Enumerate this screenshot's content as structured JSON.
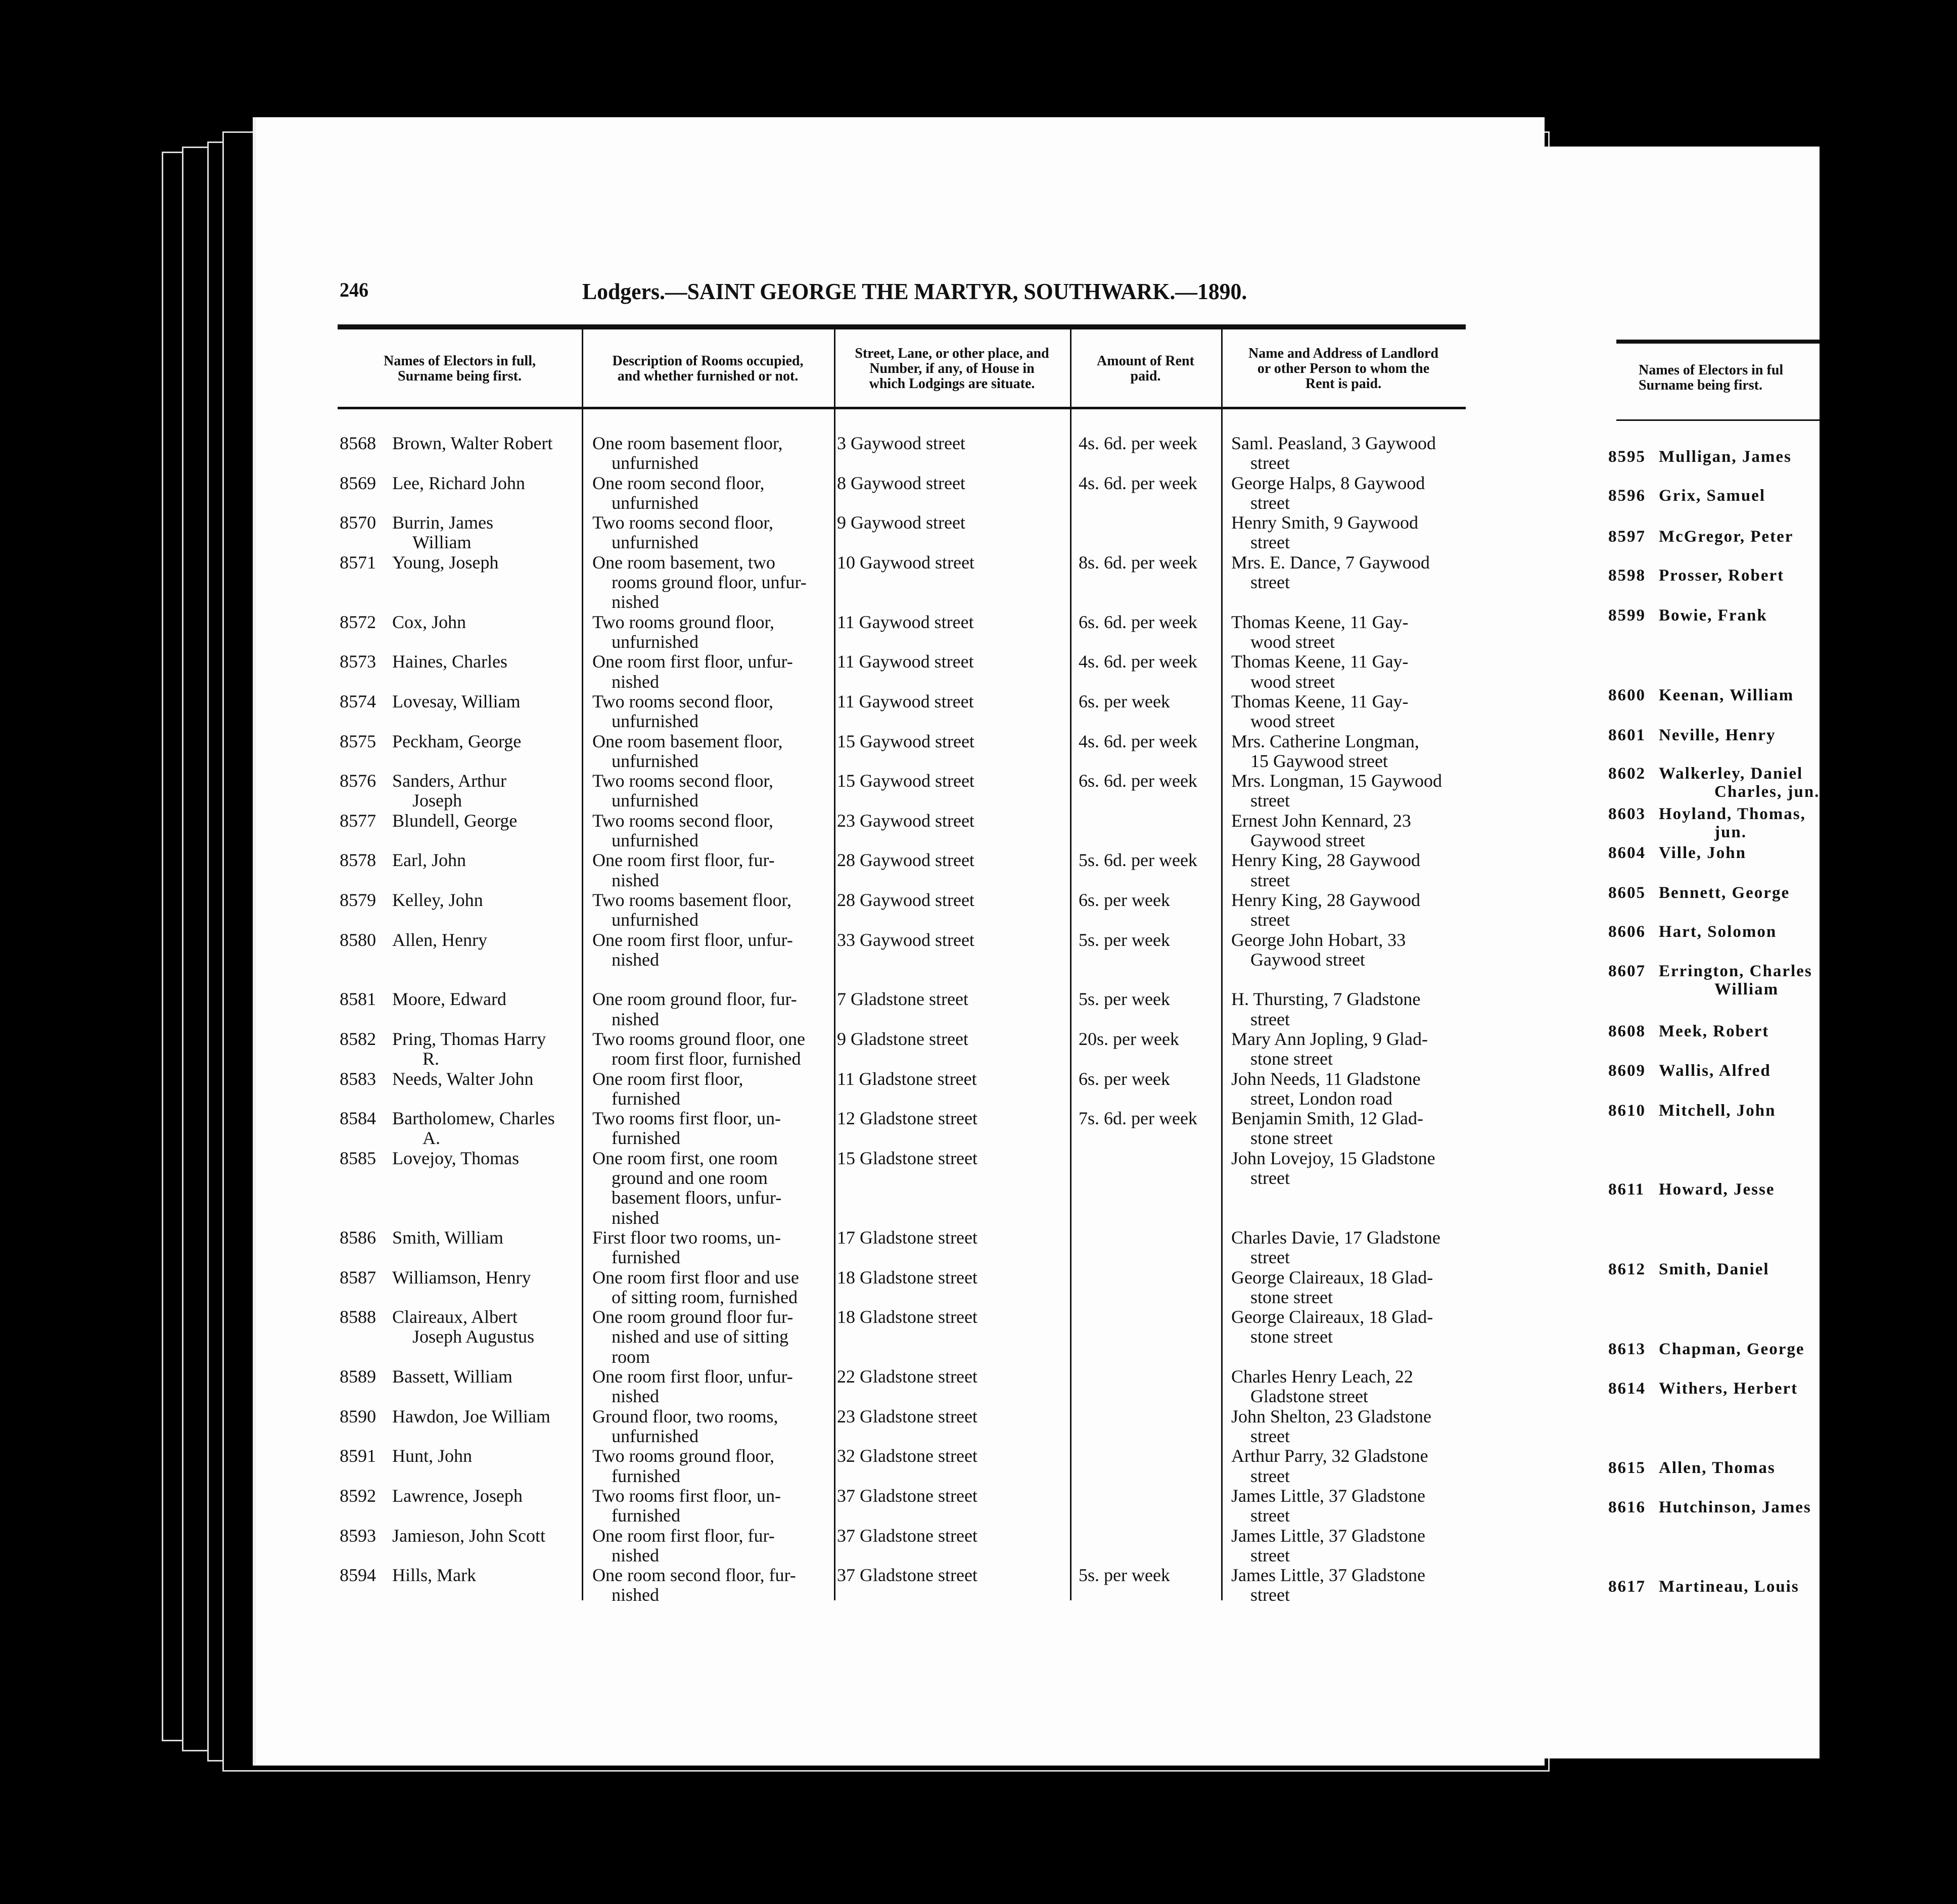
{
  "page_number": "246",
  "title": "Lodgers.—SAINT GEORGE THE MARTYR, SOUTHWARK.—1890.",
  "columns": [
    "Names of Electors in full,\nSurname being first.",
    "Description of Rooms occupied,\nand whether furnished or not.",
    "Street, Lane, or other place, and\nNumber, if any, of House in\nwhich Lodgings are situate.",
    "Amount of Rent\npaid.",
    "Name and Address of Landlord\nor other Person to whom the\nRent is paid."
  ],
  "rows": [
    {
      "no": "8568",
      "name": "Brown, Walter Robert",
      "rooms": "One room basement floor,\nunfurnished",
      "street": "3 Gaywood street",
      "rent": "4s. 6d. per week",
      "landlord": "Saml. Peasland, 3 Gaywood\nstreet"
    },
    {
      "no": "8569",
      "name": "Lee, Richard John",
      "rooms": "One room second floor,\nunfurnished",
      "street": "8 Gaywood street",
      "rent": "4s. 6d. per week",
      "landlord": "George Halps, 8 Gaywood\nstreet"
    },
    {
      "no": "8570",
      "name": "Burrin, James\nWilliam",
      "rooms": "Two rooms second floor,\nunfurnished",
      "street": "9 Gaywood street",
      "rent": "",
      "landlord": "Henry Smith, 9 Gaywood\nstreet"
    },
    {
      "no": "8571",
      "name": "Young, Joseph",
      "rooms": "One room basement, two\nrooms ground floor, unfur-\nnished",
      "street": "10 Gaywood street",
      "rent": "8s. 6d. per week",
      "landlord": "Mrs. E. Dance, 7 Gaywood\nstreet"
    },
    {
      "no": "8572",
      "name": "Cox, John",
      "rooms": "Two rooms ground floor,\nunfurnished",
      "street": "11 Gaywood street",
      "rent": "6s. 6d. per week",
      "landlord": "Thomas Keene, 11 Gay-\nwood street"
    },
    {
      "no": "8573",
      "name": "Haines, Charles",
      "rooms": "One room first floor, unfur-\nnished",
      "street": "11 Gaywood street",
      "rent": "4s. 6d. per week",
      "landlord": "Thomas Keene, 11 Gay-\nwood street"
    },
    {
      "no": "8574",
      "name": "Lovesay, William",
      "rooms": "Two rooms second floor,\nunfurnished",
      "street": "11 Gaywood street",
      "rent": "6s. per week",
      "landlord": "Thomas Keene, 11 Gay-\nwood street"
    },
    {
      "no": "8575",
      "name": "Peckham, George",
      "rooms": "One room basement floor,\nunfurnished",
      "street": "15 Gaywood street",
      "rent": "4s. 6d. per week",
      "landlord": "Mrs. Catherine Longman,\n15 Gaywood street"
    },
    {
      "no": "8576",
      "name": "Sanders, Arthur\nJoseph",
      "rooms": "Two rooms second floor,\nunfurnished",
      "street": "15 Gaywood street",
      "rent": "6s. 6d. per week",
      "landlord": "Mrs. Longman, 15 Gaywood\nstreet"
    },
    {
      "no": "8577",
      "name": "Blundell, George",
      "rooms": "Two rooms second floor,\nunfurnished",
      "street": "23 Gaywood street",
      "rent": "",
      "landlord": "Ernest John Kennard, 23\nGaywood street"
    },
    {
      "no": "8578",
      "name": "Earl, John",
      "rooms": "One room first floor, fur-\nnished",
      "street": "28 Gaywood street",
      "rent": "5s. 6d. per week",
      "landlord": "Henry King, 28 Gaywood\nstreet"
    },
    {
      "no": "8579",
      "name": "Kelley, John",
      "rooms": "Two rooms basement floor,\nunfurnished",
      "street": "28 Gaywood street",
      "rent": "6s. per week",
      "landlord": "Henry King, 28 Gaywood\nstreet"
    },
    {
      "no": "8580",
      "name": "Allen, Henry",
      "rooms": "One room first floor, unfur-\nnished",
      "street": "33 Gaywood street",
      "rent": "5s. per week",
      "landlord": "George John Hobart, 33\nGaywood street"
    },
    {
      "no": "8581",
      "name": "Moore, Edward",
      "rooms": "One room ground floor, fur-\nnished",
      "street": "7 Gladstone street",
      "rent": "5s. per week",
      "landlord": "H. Thursting, 7 Gladstone\nstreet"
    },
    {
      "no": "8582",
      "name": "Pring, Thomas Harry\nR.",
      "rooms": "Two rooms ground floor, one\nroom first floor, furnished",
      "street": "9 Gladstone street",
      "rent": "20s. per week",
      "landlord": "Mary Ann Jopling, 9 Glad-\nstone street"
    },
    {
      "no": "8583",
      "name": "Needs, Walter John",
      "rooms": "One room first floor,\nfurnished",
      "street": "11 Gladstone street",
      "rent": "6s. per week",
      "landlord": "John Needs, 11 Gladstone\nstreet, London road"
    },
    {
      "no": "8584",
      "name": "Bartholomew, Charles\nA.",
      "rooms": "Two rooms first floor, un-\nfurnished",
      "street": "12 Gladstone street",
      "rent": "7s. 6d. per week",
      "landlord": "Benjamin Smith, 12 Glad-\nstone street"
    },
    {
      "no": "8585",
      "name": "Lovejoy, Thomas",
      "rooms": "One room first, one room\nground and one room\nbasement floors, unfur-\nnished",
      "street": "15 Gladstone street",
      "rent": "",
      "landlord": "John Lovejoy, 15 Gladstone\nstreet"
    },
    {
      "no": "8586",
      "name": "Smith, William",
      "rooms": "First floor two rooms, un-\nfurnished",
      "street": "17 Gladstone street",
      "rent": "",
      "landlord": "Charles Davie, 17 Gladstone\nstreet"
    },
    {
      "no": "8587",
      "name": "Williamson, Henry",
      "rooms": "One room first floor and use\nof sitting room, furnished",
      "street": "18 Gladstone street",
      "rent": "",
      "landlord": "George Claireaux, 18 Glad-\nstone street"
    },
    {
      "no": "8588",
      "name": "Claireaux, Albert\nJoseph Augustus",
      "rooms": "One room ground floor fur-\nnished and use of sitting\nroom",
      "street": "18 Gladstone street",
      "rent": "",
      "landlord": "George Claireaux, 18 Glad-\nstone street"
    },
    {
      "no": "8589",
      "name": "Bassett, William",
      "rooms": "One room first floor, unfur-\nnished",
      "street": "22 Gladstone street",
      "rent": "",
      "landlord": "Charles Henry Leach, 22\nGladstone street"
    },
    {
      "no": "8590",
      "name": "Hawdon, Joe William",
      "rooms": "Ground floor, two rooms,\nunfurnished",
      "street": "23 Gladstone street",
      "rent": "",
      "landlord": "John Shelton, 23 Gladstone\nstreet"
    },
    {
      "no": "8591",
      "name": "Hunt, John",
      "rooms": "Two rooms ground floor,\nfurnished",
      "street": "32 Gladstone street",
      "rent": "",
      "landlord": "Arthur Parry, 32 Gladstone\nstreet"
    },
    {
      "no": "8592",
      "name": "Lawrence, Joseph",
      "rooms": "Two rooms first floor, un-\nfurnished",
      "street": "37 Gladstone street",
      "rent": "",
      "landlord": "James Little, 37 Gladstone\nstreet"
    },
    {
      "no": "8593",
      "name": "Jamieson, John Scott",
      "rooms": "One room first floor, fur-\nnished",
      "street": "37 Gladstone street",
      "rent": "",
      "landlord": "James Little, 37 Gladstone\nstreet"
    },
    {
      "no": "8594",
      "name": "Hills, Mark",
      "rooms": "One room second floor, fur-\nnished",
      "street": "37 Gladstone street",
      "rent": "5s. per week",
      "landlord": "James Little, 37 Gladstone\nstreet"
    }
  ],
  "right_page": {
    "header": "Names of Electors in ful\nSurname being first.",
    "rows": [
      {
        "no": "8595",
        "name": "Mulligan, James"
      },
      {
        "no": "8596",
        "name": "Grix, Samuel"
      },
      {
        "no": "8597",
        "name": "McGregor, Peter"
      },
      {
        "no": "8598",
        "name": "Prosser, Robert"
      },
      {
        "no": "8599",
        "name": "Bowie, Frank"
      },
      {
        "no": "8600",
        "name": "Keenan, William"
      },
      {
        "no": "8601",
        "name": "Neville, Henry"
      },
      {
        "no": "8602",
        "name": "Walkerley, Daniel\nCharles, jun."
      },
      {
        "no": "8603",
        "name": "Hoyland, Thomas,\njun."
      },
      {
        "no": "8604",
        "name": "Ville, John"
      },
      {
        "no": "8605",
        "name": "Bennett, George"
      },
      {
        "no": "8606",
        "name": "Hart, Solomon"
      },
      {
        "no": "8607",
        "name": "Errington, Charles\nWilliam"
      },
      {
        "no": "8608",
        "name": "Meek, Robert"
      },
      {
        "no": "8609",
        "name": "Wallis, Alfred"
      },
      {
        "no": "8610",
        "name": "Mitchell, John"
      },
      {
        "no": "8611",
        "name": "Howard, Jesse"
      },
      {
        "no": "8612",
        "name": "Smith, Daniel"
      },
      {
        "no": "8613",
        "name": "Chapman, George"
      },
      {
        "no": "8614",
        "name": "Withers, Herbert"
      },
      {
        "no": "8615",
        "name": "Allen, Thomas"
      },
      {
        "no": "8616",
        "name": "Hutchinson, James"
      },
      {
        "no": "8617",
        "name": "Martineau, Louis"
      }
    ]
  }
}
